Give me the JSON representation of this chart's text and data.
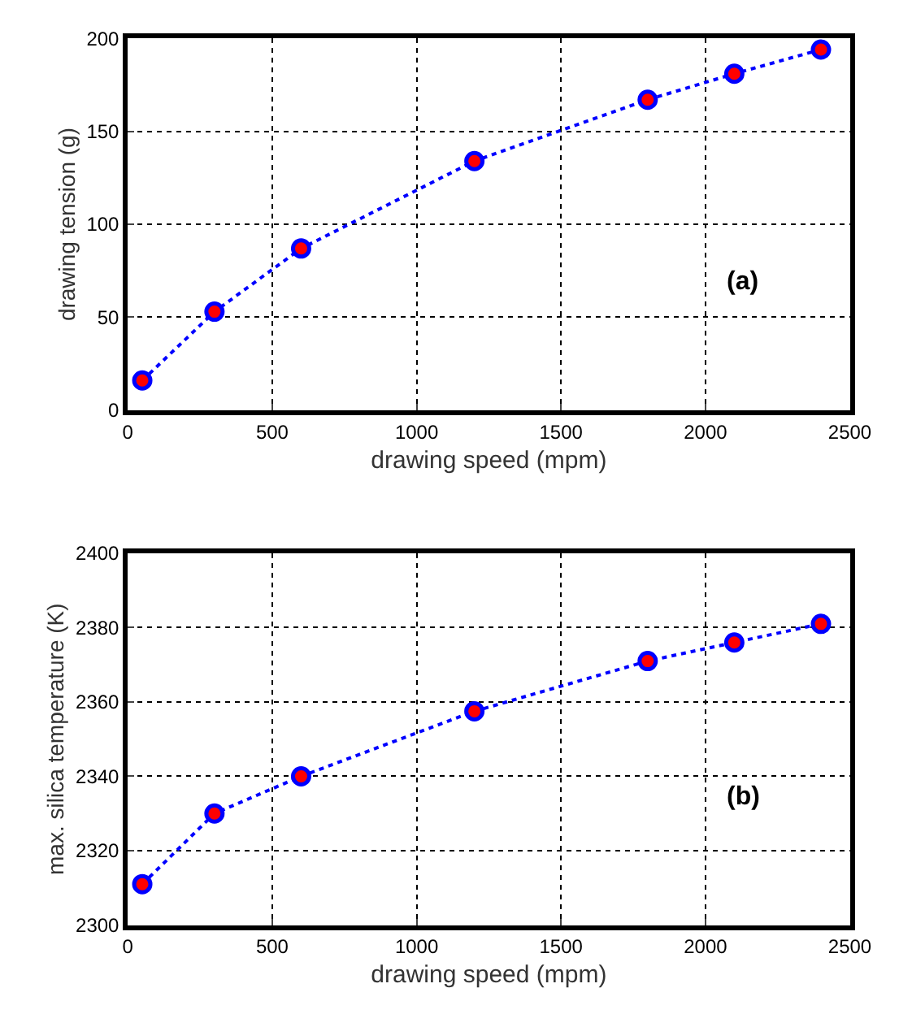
{
  "chart_data": [
    {
      "type": "line",
      "xlabel": "drawing speed (mpm)",
      "ylabel": "drawing tension (g)",
      "annotations": [
        "(a)"
      ],
      "x": [
        50,
        300,
        600,
        1200,
        1800,
        2100,
        2400
      ],
      "series": [
        {
          "color": "#0000ff",
          "values": [
            16,
            53,
            87,
            134,
            167,
            181,
            194
          ]
        }
      ],
      "xlim": [
        0,
        2500
      ],
      "xticks": [
        0,
        500,
        1000,
        1500,
        2000,
        2500
      ],
      "ylim": [
        0,
        200
      ],
      "yticks": [
        0,
        50,
        100,
        150,
        200
      ],
      "grid": true,
      "marker": "circle",
      "line_style": "dotted"
    },
    {
      "type": "line",
      "xlabel": "drawing speed (mpm)",
      "ylabel": "max. silica temperature (K)",
      "annotations": [
        "(b)"
      ],
      "x": [
        50,
        300,
        600,
        1200,
        1800,
        2100,
        2400
      ],
      "series": [
        {
          "color": "#0000ff",
          "values": [
            2311,
            2330,
            2340,
            2357.5,
            2371,
            2376,
            2381
          ]
        }
      ],
      "xlim": [
        0,
        2500
      ],
      "xticks": [
        0,
        500,
        1000,
        1500,
        2000,
        2500
      ],
      "ylim": [
        2300,
        2400
      ],
      "yticks": [
        2300,
        2320,
        2340,
        2360,
        2380,
        2400
      ],
      "grid": true,
      "marker": "circle",
      "line_style": "dotted"
    }
  ]
}
